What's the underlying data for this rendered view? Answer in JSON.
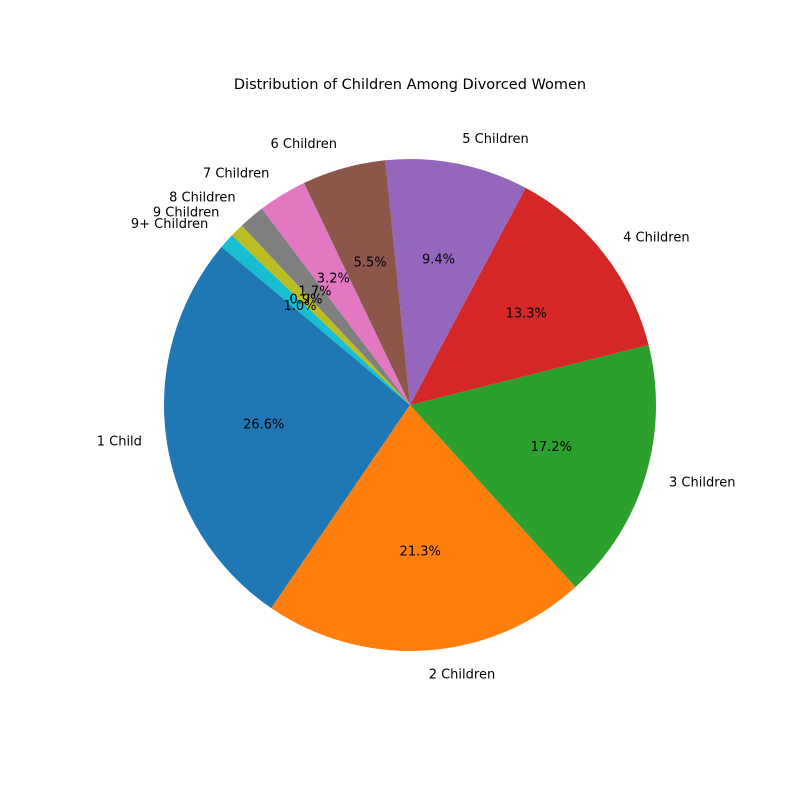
{
  "chart_data": {
    "type": "pie",
    "title": "Distribution of Children Among Divorced Women",
    "start_angle_deg": 140,
    "direction": "counterclockwise",
    "slices": [
      {
        "label": "1 Child",
        "value": 26.6,
        "pct_label": "26.6%",
        "color": "#1f77b4"
      },
      {
        "label": "2 Children",
        "value": 21.3,
        "pct_label": "21.3%",
        "color": "#ff7f0e"
      },
      {
        "label": "3 Children",
        "value": 17.2,
        "pct_label": "17.2%",
        "color": "#2ca02c"
      },
      {
        "label": "4 Children",
        "value": 13.3,
        "pct_label": "13.3%",
        "color": "#d62728"
      },
      {
        "label": "5 Children",
        "value": 9.4,
        "pct_label": "9.4%",
        "color": "#9467bd"
      },
      {
        "label": "6 Children",
        "value": 5.5,
        "pct_label": "5.5%",
        "color": "#8c564b"
      },
      {
        "label": "7 Children",
        "value": 3.2,
        "pct_label": "3.2%",
        "color": "#e377c2"
      },
      {
        "label": "8 Children",
        "value": 1.7,
        "pct_label": "1.7%",
        "color": "#7f7f7f"
      },
      {
        "label": "9 Children",
        "value": 0.9,
        "pct_label": "0.9%",
        "color": "#bcbd22"
      },
      {
        "label": "9+ Children",
        "value": 1.0,
        "pct_label": "1.0%",
        "color": "#17becf"
      }
    ]
  }
}
